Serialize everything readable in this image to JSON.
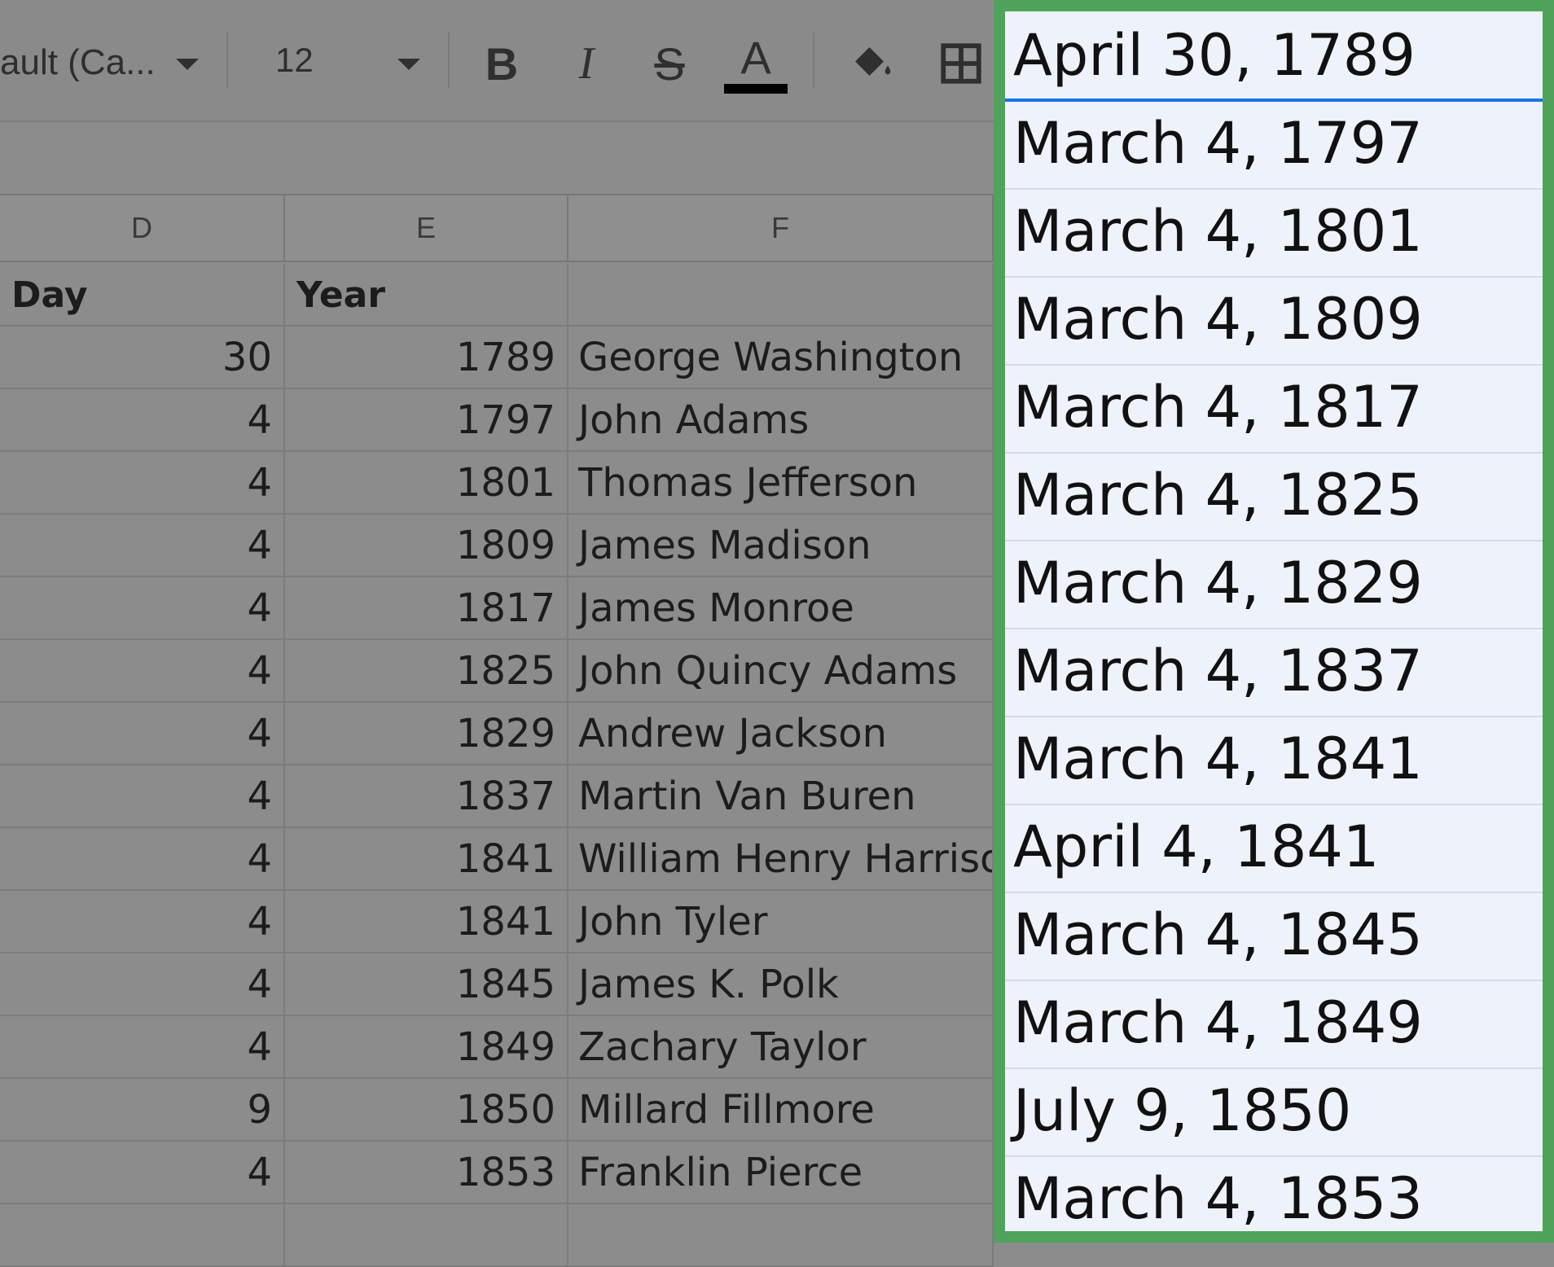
{
  "toolbar": {
    "font_name": "ault (Ca...",
    "font_size": "12",
    "bold_label": "B",
    "italic_label": "I",
    "strike_label": "S",
    "text_color_label": "A",
    "text_color_value": "#000000"
  },
  "columns": [
    "D",
    "E",
    "F"
  ],
  "headers": {
    "day": "Day",
    "year": "Year",
    "name": ""
  },
  "rows": [
    {
      "day": "30",
      "year": "1789",
      "name": "George Washington"
    },
    {
      "day": "4",
      "year": "1797",
      "name": "John Adams"
    },
    {
      "day": "4",
      "year": "1801",
      "name": "Thomas Jefferson"
    },
    {
      "day": "4",
      "year": "1809",
      "name": "James Madison"
    },
    {
      "day": "4",
      "year": "1817",
      "name": "James Monroe"
    },
    {
      "day": "4",
      "year": "1825",
      "name": "John Quincy Adams"
    },
    {
      "day": "4",
      "year": "1829",
      "name": "Andrew Jackson"
    },
    {
      "day": "4",
      "year": "1837",
      "name": "Martin Van Buren"
    },
    {
      "day": "4",
      "year": "1841",
      "name": "William Henry Harriso"
    },
    {
      "day": "4",
      "year": "1841",
      "name": "John Tyler"
    },
    {
      "day": "4",
      "year": "1845",
      "name": "James K. Polk"
    },
    {
      "day": "4",
      "year": "1849",
      "name": "Zachary Taylor"
    },
    {
      "day": "9",
      "year": "1850",
      "name": "Millard Fillmore"
    },
    {
      "day": "4",
      "year": "1853",
      "name": "Franklin Pierce"
    }
  ],
  "dates": [
    "April 30, 1789",
    "March 4, 1797",
    "March 4, 1801",
    "March 4, 1809",
    "March 4, 1817",
    "March 4, 1825",
    "March 4, 1829",
    "March 4, 1837",
    "March 4, 1841",
    "April 4, 1841",
    "March 4, 1845",
    "March 4, 1849",
    "July 9, 1850",
    "March 4, 1853"
  ],
  "colors": {
    "selection_border": "#4fa35a",
    "active_cell_underline": "#1a73e8",
    "panel_bg": "#eef2fb"
  }
}
